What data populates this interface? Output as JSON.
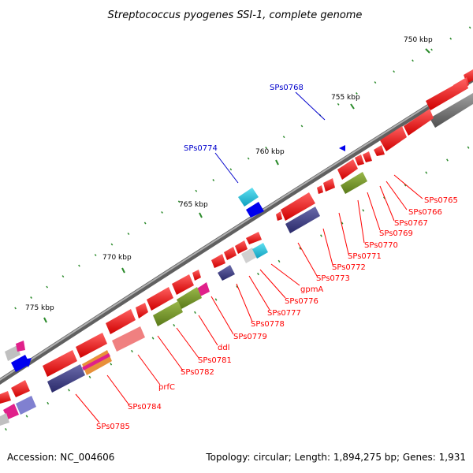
{
  "title": "Streptococcus pyogenes SSI-1, complete genome",
  "footer": {
    "accession": "Accession: NC_004606",
    "summary": "Topology: circular; Length: 1,894,275 bp; Genes: 1,931"
  },
  "ticks": [
    "750 kbp",
    "755 kbp",
    "760 kbp",
    "765 kbp",
    "770 kbp",
    "775 kbp"
  ],
  "colors": {
    "backbone": "#8c8c8c",
    "cds": "#ff0000",
    "label_red": "#ff0000",
    "label_blue": "#0000cc",
    "olive": "#7a9a2a",
    "navy": "#4a4a8a",
    "cyan": "#20c0d8",
    "pink": "#f08080",
    "magenta": "#e0208a",
    "gray": "#808080",
    "blue": "#0000ee",
    "minor_tick": "#2a8a2a"
  },
  "gene_labels": [
    {
      "text": "SPs0768",
      "color": "blue"
    },
    {
      "text": "SPs0774",
      "color": "blue"
    },
    {
      "text": "SPs0765",
      "color": "red"
    },
    {
      "text": "SPs0766",
      "color": "red"
    },
    {
      "text": "SPs0767",
      "color": "red"
    },
    {
      "text": "SPs0769",
      "color": "red"
    },
    {
      "text": "SPs0770",
      "color": "red"
    },
    {
      "text": "SPs0771",
      "color": "red"
    },
    {
      "text": "SPs0772",
      "color": "red"
    },
    {
      "text": "SPs0773",
      "color": "red"
    },
    {
      "text": "gpmA",
      "color": "red"
    },
    {
      "text": "SPs0776",
      "color": "red"
    },
    {
      "text": "SPs0777",
      "color": "red"
    },
    {
      "text": "SPs0778",
      "color": "red"
    },
    {
      "text": "SPs0779",
      "color": "red"
    },
    {
      "text": "ddl",
      "color": "red"
    },
    {
      "text": "SPs0781",
      "color": "red"
    },
    {
      "text": "SPs0782",
      "color": "red"
    },
    {
      "text": "prfC",
      "color": "red"
    },
    {
      "text": "SPs0784",
      "color": "red"
    },
    {
      "text": "SPs0785",
      "color": "red"
    }
  ]
}
